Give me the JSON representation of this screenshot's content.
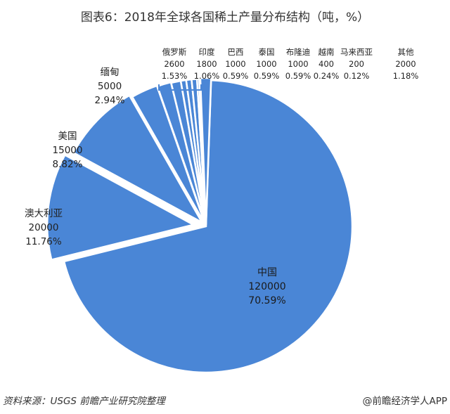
{
  "title": "图表6：2018年全球各国稀土产量分布结构（吨，%）",
  "chart_data": {
    "type": "pie",
    "title": "图表6：2018年全球各国稀土产量分布结构（吨，%）",
    "slices": [
      {
        "name": "中国",
        "value": 120000,
        "percent": "70.59%"
      },
      {
        "name": "澳大利亚",
        "value": 20000,
        "percent": "11.76%"
      },
      {
        "name": "美国",
        "value": 15000,
        "percent": "8.82%"
      },
      {
        "name": "缅甸",
        "value": 5000,
        "percent": "2.94%"
      },
      {
        "name": "俄罗斯",
        "value": 2600,
        "percent": "1.53%"
      },
      {
        "name": "印度",
        "value": 1800,
        "percent": "1.06%"
      },
      {
        "name": "巴西",
        "value": 1000,
        "percent": "0.59%"
      },
      {
        "name": "泰国",
        "value": 1000,
        "percent": "0.59%"
      },
      {
        "name": "布隆迪",
        "value": 1000,
        "percent": "0.59%"
      },
      {
        "name": "越南",
        "value": 400,
        "percent": "0.24%"
      },
      {
        "name": "马来西亚",
        "value": 200,
        "percent": "0.12%"
      },
      {
        "name": "其他",
        "value": 2000,
        "percent": "1.18%"
      }
    ],
    "color": "#4a86d6"
  },
  "footer": {
    "source": "资料来源：USGS  前瞻产业研究院整理",
    "at": "@",
    "brand": "前瞻经济学人APP"
  }
}
